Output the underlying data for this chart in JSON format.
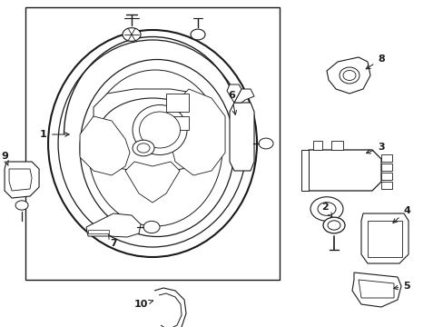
{
  "bg": "#ffffff",
  "lc": "#1a1a1a",
  "lw": 0.8,
  "fig_w": 4.89,
  "fig_h": 3.6,
  "dpi": 100
}
